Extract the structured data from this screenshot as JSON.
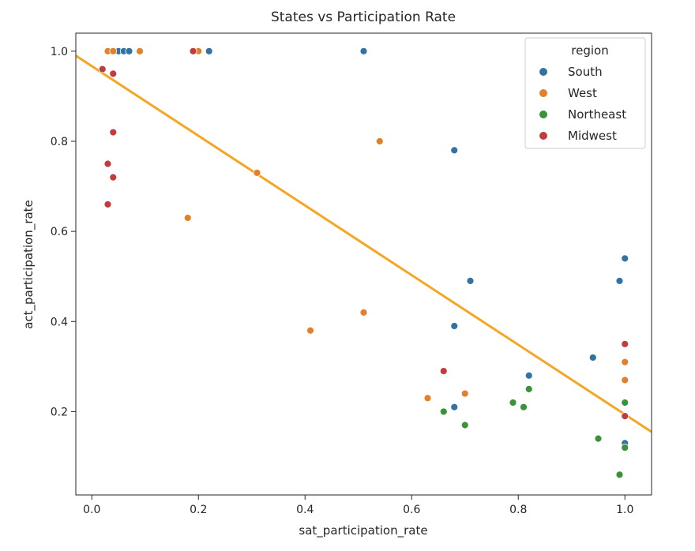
{
  "chart_data": {
    "type": "scatter",
    "title": "States vs Participation Rate",
    "xlabel": "sat_participation_rate",
    "ylabel": "act_participation_rate",
    "xlim": [
      -0.03,
      1.05
    ],
    "ylim": [
      0.015,
      1.04
    ],
    "xticks": [
      0.0,
      0.2,
      0.4,
      0.6,
      0.8,
      1.0
    ],
    "xtick_labels": [
      "0.0",
      "0.2",
      "0.4",
      "0.6",
      "0.8",
      "1.0"
    ],
    "yticks": [
      0.2,
      0.4,
      0.6,
      0.8,
      1.0
    ],
    "ytick_labels": [
      "0.2",
      "0.4",
      "0.6",
      "0.8",
      "1.0"
    ],
    "grid": false,
    "legend": {
      "title": "region",
      "placement": "top-right"
    },
    "series": [
      {
        "name": "South",
        "color": "#3274a1",
        "points": [
          [
            0.05,
            1.0
          ],
          [
            0.06,
            1.0
          ],
          [
            0.07,
            1.0
          ],
          [
            0.22,
            1.0
          ],
          [
            0.51,
            1.0
          ],
          [
            0.68,
            0.78
          ],
          [
            0.71,
            0.49
          ],
          [
            0.68,
            0.39
          ],
          [
            0.82,
            0.28
          ],
          [
            0.68,
            0.21
          ],
          [
            0.94,
            0.32
          ],
          [
            0.99,
            0.49
          ],
          [
            1.0,
            0.54
          ],
          [
            1.0,
            0.13
          ]
        ]
      },
      {
        "name": "West",
        "color": "#e1812c",
        "points": [
          [
            0.03,
            1.0
          ],
          [
            0.04,
            1.0
          ],
          [
            0.09,
            1.0
          ],
          [
            0.2,
            1.0
          ],
          [
            0.54,
            0.8
          ],
          [
            0.31,
            0.73
          ],
          [
            0.18,
            0.63
          ],
          [
            0.41,
            0.38
          ],
          [
            0.51,
            0.42
          ],
          [
            0.63,
            0.23
          ],
          [
            0.7,
            0.24
          ],
          [
            1.0,
            0.31
          ],
          [
            1.0,
            0.27
          ]
        ]
      },
      {
        "name": "Northeast",
        "color": "#3a923a",
        "points": [
          [
            0.66,
            0.2
          ],
          [
            0.7,
            0.17
          ],
          [
            0.79,
            0.22
          ],
          [
            0.81,
            0.21
          ],
          [
            0.82,
            0.25
          ],
          [
            0.95,
            0.14
          ],
          [
            0.99,
            0.06
          ],
          [
            1.0,
            0.12
          ],
          [
            1.0,
            0.22
          ]
        ]
      },
      {
        "name": "Midwest",
        "color": "#c03d3e",
        "points": [
          [
            0.02,
            0.96
          ],
          [
            0.04,
            0.95
          ],
          [
            0.04,
            0.82
          ],
          [
            0.03,
            0.75
          ],
          [
            0.04,
            0.72
          ],
          [
            0.03,
            0.66
          ],
          [
            0.19,
            1.0
          ],
          [
            0.66,
            0.29
          ],
          [
            1.0,
            0.35
          ],
          [
            1.0,
            0.19
          ]
        ]
      }
    ],
    "trend_line": {
      "color": "#f5a623",
      "x": [
        -0.03,
        1.05
      ],
      "y": [
        0.99,
        0.155
      ]
    }
  }
}
